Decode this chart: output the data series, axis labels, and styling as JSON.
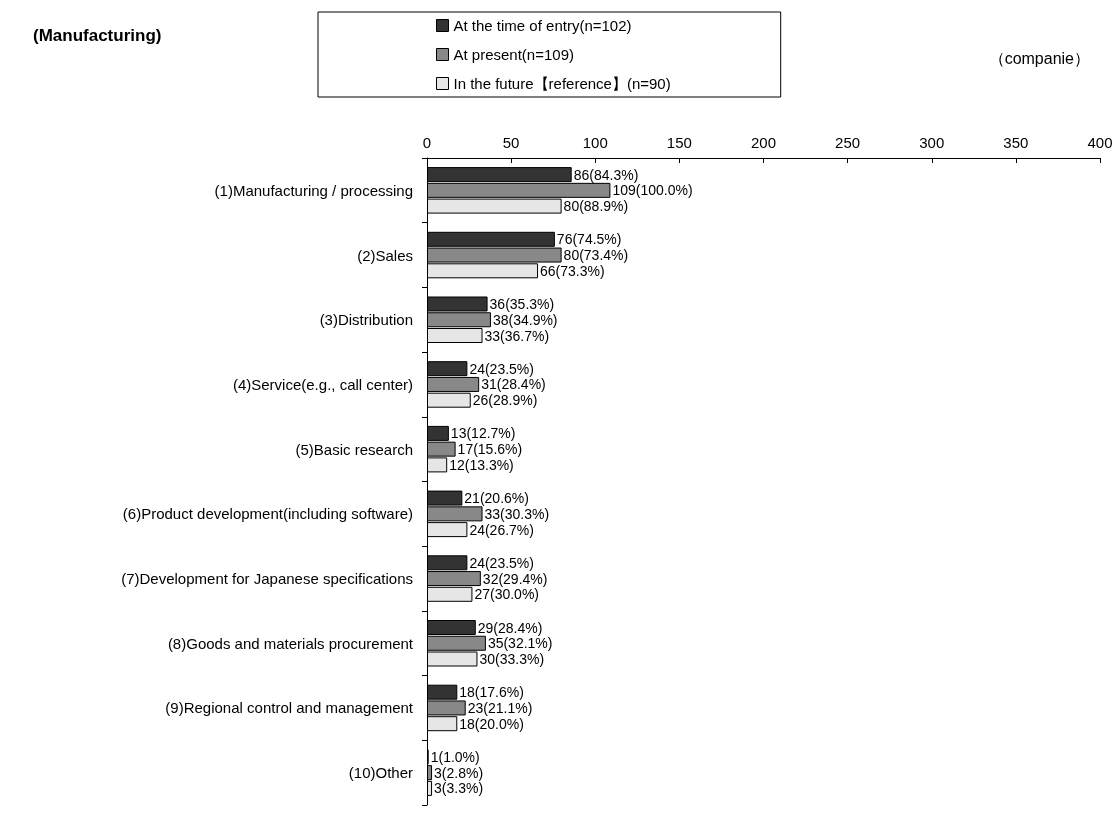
{
  "chart_data": {
    "type": "bar",
    "orientation": "horizontal",
    "title": "(Manufacturing)",
    "annotations": [
      "（companie）"
    ],
    "categories": [
      "(1)Manufacturing / processing",
      "(2)Sales",
      "(3)Distribution",
      "(4)Service(e.g., call center)",
      "(5)Basic research",
      "(6)Product development(including software)",
      "(7)Development for Japanese specifications",
      "(8)Goods and materials procurement",
      "(9)Regional control and management",
      "(10)Other"
    ],
    "series": [
      {
        "name": "At the time of entry(n=102)",
        "color": "#333333",
        "values": [
          86,
          76,
          36,
          24,
          13,
          21,
          24,
          29,
          18,
          1
        ],
        "value_labels": [
          "86(84.3%)",
          "76(74.5%)",
          "36(35.3%)",
          "24(23.5%)",
          "13(12.7%)",
          "21(20.6%)",
          "24(23.5%)",
          "29(28.4%)",
          "18(17.6%)",
          "1(1.0%)"
        ]
      },
      {
        "name": "At present(n=109)",
        "color": "#888888",
        "values": [
          109,
          80,
          38,
          31,
          17,
          33,
          32,
          35,
          23,
          3
        ],
        "value_labels": [
          "109(100.0%)",
          "80(73.4%)",
          "38(34.9%)",
          "31(28.4%)",
          "17(15.6%)",
          "33(30.3%)",
          "32(29.4%)",
          "35(32.1%)",
          "23(21.1%)",
          "3(2.8%)"
        ]
      },
      {
        "name": "In the future【reference】(n=90)",
        "color": "#e6e6e6",
        "values": [
          80,
          66,
          33,
          26,
          12,
          24,
          27,
          30,
          18,
          3
        ],
        "value_labels": [
          "80(88.9%)",
          "66(73.3%)",
          "33(36.7%)",
          "26(28.9%)",
          "12(13.3%)",
          "24(26.7%)",
          "27(30.0%)",
          "30(33.3%)",
          "18(20.0%)",
          "3(3.3%)"
        ]
      }
    ],
    "xlim": [
      0,
      400
    ],
    "xticks": [
      0,
      50,
      100,
      150,
      200,
      250,
      300,
      350,
      400
    ],
    "grid": false,
    "legend": "top"
  }
}
